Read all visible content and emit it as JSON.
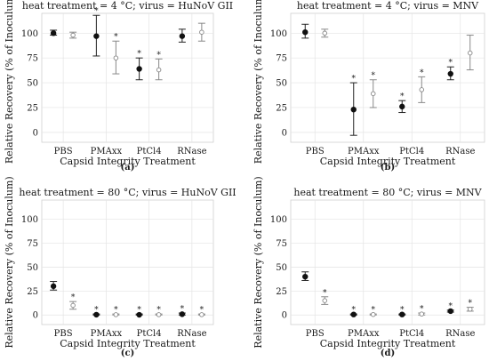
{
  "chart_data": [
    {
      "type": "scatter",
      "title": "heat treatment = 4 °C; virus = HuNoV GII",
      "caption": "(a)",
      "xlabel": "Capsid Integrity Treatment",
      "ylabel": "Relative Recovery (% of Inoculum)",
      "categories": [
        "PBS",
        "PMAxx",
        "PtCl4",
        "RNase"
      ],
      "ylim": [
        -10,
        120
      ],
      "yticks": [
        0,
        25,
        50,
        75,
        100
      ],
      "grid": true,
      "series": [
        {
          "style": "filled",
          "values": [
            100,
            97,
            64,
            97
          ],
          "err_low": [
            98,
            77,
            53,
            91
          ],
          "err_high": [
            103,
            118,
            75,
            104
          ],
          "significant": [
            false,
            true,
            true,
            false
          ]
        },
        {
          "style": "open",
          "values": [
            98,
            75,
            63,
            101
          ],
          "err_low": [
            95,
            59,
            53,
            92
          ],
          "err_high": [
            101,
            92,
            74,
            110
          ],
          "significant": [
            false,
            true,
            true,
            false
          ]
        }
      ]
    },
    {
      "type": "scatter",
      "title": "heat treatment = 4 °C; virus = MNV",
      "caption": "(b)",
      "xlabel": "Capsid Integrity Treatment",
      "ylabel": "Relative Recovery (% of Inoculum)",
      "categories": [
        "PBS",
        "PMAxx",
        "PtCl4",
        "RNase"
      ],
      "ylim": [
        -10,
        120
      ],
      "yticks": [
        0,
        25,
        50,
        75,
        100
      ],
      "grid": true,
      "series": [
        {
          "style": "filled",
          "values": [
            101,
            23,
            26,
            59
          ],
          "err_low": [
            95,
            -3,
            20,
            53
          ],
          "err_high": [
            109,
            50,
            32,
            66
          ],
          "significant": [
            false,
            true,
            true,
            true
          ]
        },
        {
          "style": "open",
          "values": [
            100,
            39,
            43,
            80
          ],
          "err_low": [
            96,
            25,
            30,
            63
          ],
          "err_high": [
            104,
            53,
            56,
            98
          ],
          "significant": [
            false,
            true,
            true,
            false
          ]
        }
      ]
    },
    {
      "type": "scatter",
      "title": "heat treatment = 80 °C; virus = HuNoV GII",
      "caption": "(c)",
      "xlabel": "Capsid Integrity Treatment",
      "ylabel": "Relative Recovery (% of Inoculum)",
      "categories": [
        "PBS",
        "PMAxx",
        "PtCl4",
        "RNase"
      ],
      "ylim": [
        -10,
        120
      ],
      "yticks": [
        0,
        25,
        50,
        75,
        100
      ],
      "grid": true,
      "series": [
        {
          "style": "filled",
          "values": [
            30,
            0.3,
            0.2,
            0.8
          ],
          "err_low": [
            26,
            0,
            0,
            0
          ],
          "err_high": [
            35,
            1,
            1,
            2
          ],
          "significant": [
            false,
            true,
            true,
            true
          ]
        },
        {
          "style": "open",
          "values": [
            10,
            0.3,
            0.3,
            0.3
          ],
          "err_low": [
            6,
            0,
            0,
            0
          ],
          "err_high": [
            14,
            1,
            1,
            1
          ],
          "significant": [
            true,
            true,
            true,
            true
          ]
        }
      ]
    },
    {
      "type": "scatter",
      "title": "heat treatment = 80 °C; virus = MNV",
      "caption": "(d)",
      "xlabel": "Capsid Integrity Treatment",
      "ylabel": "Relative Recovery (% of Inoculum)",
      "categories": [
        "PBS",
        "PMAxx",
        "PtCl4",
        "RNase"
      ],
      "ylim": [
        -10,
        120
      ],
      "yticks": [
        0,
        25,
        50,
        75,
        100
      ],
      "grid": true,
      "series": [
        {
          "style": "filled",
          "values": [
            40,
            0.5,
            0.5,
            4
          ],
          "err_low": [
            36,
            0,
            0,
            3
          ],
          "err_high": [
            45,
            1,
            1,
            5
          ],
          "significant": [
            false,
            true,
            true,
            true
          ]
        },
        {
          "style": "open",
          "values": [
            15,
            0.5,
            1,
            6
          ],
          "err_low": [
            11,
            0,
            0,
            4
          ],
          "err_high": [
            19,
            1,
            2,
            8
          ],
          "significant": [
            true,
            true,
            true,
            true
          ]
        }
      ]
    }
  ]
}
